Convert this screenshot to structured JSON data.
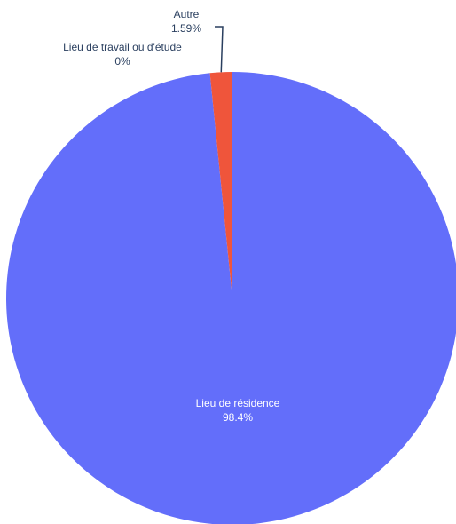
{
  "chart_data": {
    "type": "pie",
    "title": "",
    "categories": [
      "Lieu de résidence",
      "Autre",
      "Lieu de travail ou d'étude"
    ],
    "values": [
      98.4,
      1.59,
      0
    ],
    "value_labels": [
      "98.4%",
      "1.59%",
      "0%"
    ],
    "colors": [
      "#636efa",
      "#ef553b",
      "#00cc96"
    ],
    "legend": false,
    "start": "top",
    "direction": "clockwise"
  }
}
